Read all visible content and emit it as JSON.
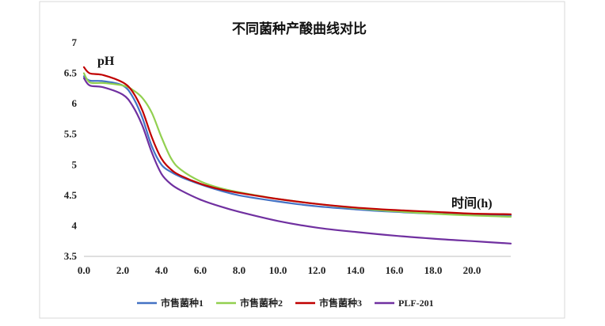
{
  "chart_data": {
    "type": "line",
    "title": "不同菌种产酸曲线对比",
    "ylabel": "pH",
    "xlabel": "时间(h)",
    "xlim": [
      0,
      22
    ],
    "ylim": [
      3.5,
      7
    ],
    "xticks": [
      0,
      2,
      4,
      6,
      8,
      10,
      12,
      14,
      16,
      18,
      20
    ],
    "xtick_labels": [
      "0.0",
      "2.0",
      "4.0",
      "6.0",
      "8.0",
      "10.0",
      "12.0",
      "14.0",
      "16.0",
      "18.0",
      "20.0"
    ],
    "yticks": [
      3.5,
      4,
      4.5,
      5,
      5.5,
      6,
      6.5,
      7
    ],
    "ytick_labels": [
      "3.5",
      "4",
      "4.5",
      "5",
      "5.5",
      "6",
      "6.5",
      "7"
    ],
    "legend_position": "bottom",
    "grid": false,
    "series": [
      {
        "name": "市售菌种1",
        "color": "#4472c4",
        "x": [
          0,
          0.3,
          1,
          2,
          2.5,
          3,
          3.5,
          4,
          4.5,
          5,
          6,
          7,
          8,
          10,
          12,
          14,
          16,
          18,
          20,
          22
        ],
        "y": [
          6.45,
          6.38,
          6.37,
          6.3,
          6.12,
          5.78,
          5.3,
          5.0,
          4.88,
          4.8,
          4.68,
          4.58,
          4.5,
          4.4,
          4.32,
          4.27,
          4.23,
          4.2,
          4.18,
          4.17
        ]
      },
      {
        "name": "市售菌种2",
        "color": "#92d050",
        "x": [
          0,
          0.3,
          1,
          2,
          2.5,
          3,
          3.5,
          4,
          4.5,
          5,
          6,
          7,
          8,
          10,
          12,
          14,
          16,
          18,
          20,
          22
        ],
        "y": [
          6.5,
          6.35,
          6.34,
          6.3,
          6.23,
          6.1,
          5.85,
          5.45,
          5.1,
          4.92,
          4.73,
          4.62,
          4.55,
          4.44,
          4.36,
          4.29,
          4.24,
          4.2,
          4.17,
          4.15
        ]
      },
      {
        "name": "市售菌种3",
        "color": "#c00000",
        "x": [
          0,
          0.3,
          1,
          2,
          2.5,
          3,
          3.5,
          4,
          4.5,
          5,
          6,
          7,
          8,
          10,
          12,
          14,
          16,
          18,
          20,
          22
        ],
        "y": [
          6.6,
          6.5,
          6.47,
          6.35,
          6.2,
          5.9,
          5.45,
          5.1,
          4.92,
          4.82,
          4.69,
          4.6,
          4.54,
          4.44,
          4.36,
          4.3,
          4.26,
          4.23,
          4.2,
          4.19
        ]
      },
      {
        "name": "PLF-201",
        "color": "#7030a0",
        "x": [
          0,
          0.3,
          1,
          2,
          2.5,
          3,
          3.5,
          4,
          4.5,
          5,
          6,
          7,
          8,
          10,
          12,
          14,
          16,
          18,
          20,
          22
        ],
        "y": [
          6.42,
          6.3,
          6.27,
          6.15,
          5.97,
          5.65,
          5.2,
          4.85,
          4.68,
          4.58,
          4.43,
          4.32,
          4.23,
          4.08,
          3.97,
          3.9,
          3.84,
          3.79,
          3.75,
          3.71
        ]
      }
    ]
  }
}
